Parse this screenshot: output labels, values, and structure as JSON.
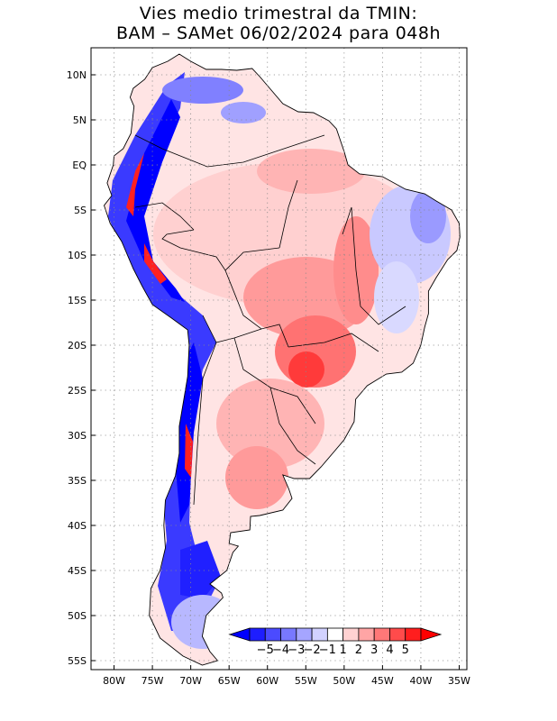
{
  "title": {
    "line1": "Vies medio trimestral da TMIN:",
    "line2": "BAM – SAMet 06/02/2024  para 048h"
  },
  "map": {
    "lon_range": [
      -83,
      -34
    ],
    "lat_range": [
      -56,
      13
    ],
    "lon_ticks": [
      {
        "value": -80,
        "label": "80W"
      },
      {
        "value": -75,
        "label": "75W"
      },
      {
        "value": -70,
        "label": "70W"
      },
      {
        "value": -65,
        "label": "65W"
      },
      {
        "value": -60,
        "label": "60W"
      },
      {
        "value": -55,
        "label": "55W"
      },
      {
        "value": -50,
        "label": "50W"
      },
      {
        "value": -45,
        "label": "45W"
      },
      {
        "value": -40,
        "label": "40W"
      },
      {
        "value": -35,
        "label": "35W"
      }
    ],
    "lat_ticks": [
      {
        "value": 10,
        "label": "10N"
      },
      {
        "value": 5,
        "label": "5N"
      },
      {
        "value": 0,
        "label": "EQ"
      },
      {
        "value": -5,
        "label": "5S"
      },
      {
        "value": -10,
        "label": "10S"
      },
      {
        "value": -15,
        "label": "15S"
      },
      {
        "value": -20,
        "label": "20S"
      },
      {
        "value": -25,
        "label": "25S"
      },
      {
        "value": -30,
        "label": "30S"
      },
      {
        "value": -35,
        "label": "35S"
      },
      {
        "value": -40,
        "label": "40S"
      },
      {
        "value": -45,
        "label": "45S"
      },
      {
        "value": -50,
        "label": "50S"
      },
      {
        "value": -55,
        "label": "55S"
      }
    ],
    "grid": "dotted"
  },
  "colorbar": {
    "labels": [
      "−5",
      "−4",
      "−3",
      "−2",
      "−1",
      "1",
      "2",
      "3",
      "4",
      "5"
    ],
    "colors": [
      "#1e1eff",
      "#4b4bff",
      "#7878ff",
      "#a5a5ff",
      "#d2d2ff",
      "#ffffff",
      "#ffd2d2",
      "#ffa5a5",
      "#ff7878",
      "#ff4b4b",
      "#ff1e1e"
    ],
    "under_color": "#0000ff",
    "over_color": "#ff0000"
  },
  "colors": {
    "deep_blue": "#0000ff",
    "mid_blue": "#6a6aff",
    "light_blue": "#c8c8ff",
    "light_red": "#ffd2d2",
    "mid_red": "#ff8a8a",
    "deep_red": "#ff2020",
    "coast": "#000000"
  }
}
